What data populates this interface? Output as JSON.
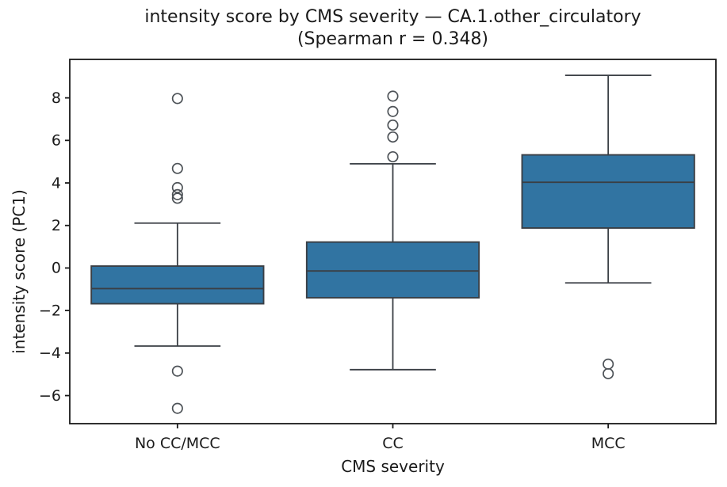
{
  "figure": {
    "title_line1": "intensity score by CMS severity — CA.1.other_circulatory",
    "title_line2": "(Spearman r = 0.348)",
    "xlabel": "CMS severity",
    "ylabel": "intensity score (PC1)"
  },
  "chart_data": {
    "type": "box",
    "title": "intensity score by CMS severity — CA.1.other_circulatory (Spearman r = 0.348)",
    "xlabel": "CMS severity",
    "ylabel": "intensity score (PC1)",
    "categories": [
      "No CC/MCC",
      "CC",
      "MCC"
    ],
    "y_ticks": [
      -6,
      -4,
      -2,
      0,
      2,
      4,
      6,
      8
    ],
    "ylim": [
      -7.32,
      9.81
    ],
    "grid": false,
    "legend": "none",
    "boxes": [
      {
        "label": "No CC/MCC",
        "whisker_low": -3.67,
        "q1": -1.68,
        "median": -0.97,
        "q3": 0.09,
        "whisker_high": 2.11,
        "outliers": [
          7.97,
          4.68,
          3.78,
          3.45,
          3.28,
          -4.85,
          -6.6
        ]
      },
      {
        "label": "CC",
        "whisker_low": -4.78,
        "q1": -1.4,
        "median": -0.14,
        "q3": 1.22,
        "whisker_high": 4.9,
        "outliers": [
          8.08,
          7.36,
          6.72,
          6.16,
          5.23
        ]
      },
      {
        "label": "MCC",
        "whisker_low": -0.7,
        "q1": 1.88,
        "median": 4.03,
        "q3": 5.32,
        "whisker_high": 9.06,
        "outliers": [
          -4.52,
          -4.97
        ]
      }
    ],
    "colors": {
      "box_fill": "#3174A2",
      "box_edge": "#3A3F45",
      "whisker": "#3A3F45",
      "outlier_edge": "#4D5257",
      "spine": "#1a1a1a",
      "tick_text": "#1a1a1a"
    }
  }
}
